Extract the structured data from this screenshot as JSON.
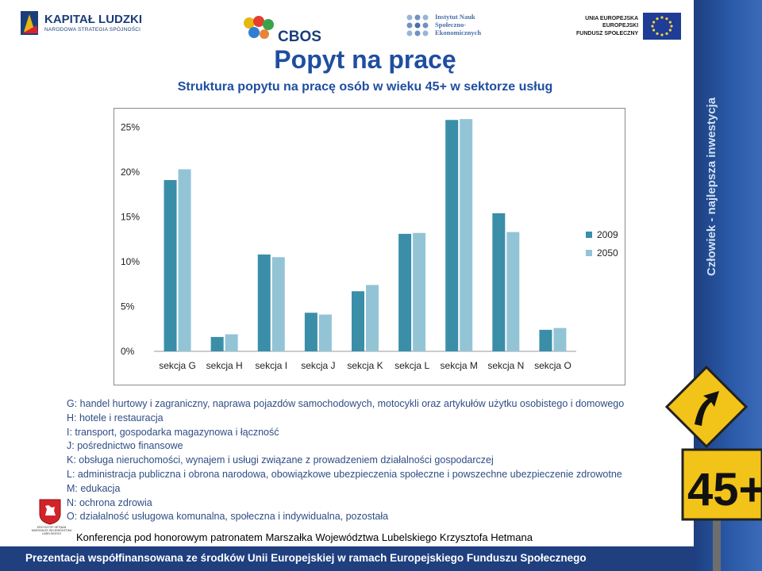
{
  "logos": {
    "kapital_name": "KAPITAŁ LUDZKI",
    "kapital_sub": "NARODOWA STRATEGIA SPÓJNOŚCI",
    "cbos": "CBOS",
    "institute_lines": [
      "Instytut Nauk",
      "Społeczno-",
      "Ekonomicznych"
    ],
    "ue_lines": [
      "UNIA EUROPEJSKA",
      "EUROPEJSKI",
      "FUNDUSZ SPOŁECZNY"
    ]
  },
  "header": {
    "title": "Popyt na pracę",
    "subtitle": "Struktura popytu na pracę osób w wieku 45+ w sektorze usług"
  },
  "chart_data": {
    "type": "bar",
    "categories": [
      "sekcja G",
      "sekcja H",
      "sekcja I",
      "sekcja J",
      "sekcja K",
      "sekcja L",
      "sekcja M",
      "sekcja N",
      "sekcja O"
    ],
    "series": [
      {
        "name": "2009",
        "values": [
          19.1,
          1.6,
          10.8,
          4.3,
          6.7,
          13.1,
          25.8,
          15.4,
          2.4
        ],
        "color": "#3a8ea8"
      },
      {
        "name": "2050",
        "values": [
          20.3,
          1.9,
          10.5,
          4.1,
          7.4,
          13.2,
          25.9,
          13.3,
          2.6
        ],
        "color": "#93c4d6"
      }
    ],
    "yticks": [
      "0%",
      "5%",
      "10%",
      "15%",
      "20%",
      "25%"
    ],
    "ylim": [
      0,
      26
    ],
    "grid": false,
    "legend_position": "right",
    "title": "",
    "xlabel": "",
    "ylabel": ""
  },
  "descriptions": [
    "G: handel hurtowy i zagraniczny, naprawa pojazdów samochodowych, motocykli  oraz artykułów użytku osobistego i domowego",
    "H: hotele i restauracja",
    "I: transport, gospodarka magazynowa i łączność",
    "J: pośrednictwo finansowe",
    "K: obsługa nieruchomości, wynajem i usługi związane z prowadzeniem działalności gospodarczej",
    "L: administracja publiczna i obrona narodowa, obowiązkowe ubezpieczenia społeczne i powszechne ubezpieczenie zdrowotne",
    "M: edukacja",
    "N: ochrona zdrowia",
    "O: działalność usługowa komunalna, społeczna i indywidualna, pozostała"
  ],
  "footer": {
    "crest_caption": "KRZYSZTOF HETMAN MARSZAŁEK WOJEWÓDZTWA LUBELSKIEGO",
    "conference": "Konferencja pod honorowym patronatem Marszałka Województwa Lubelskiego Krzysztofa Hetmana",
    "funding": "Prezentacja współfinansowana ze środków Unii Europejskiej w ramach Europejskiego Funduszu Społecznego"
  },
  "sidebar": {
    "slogan": "Człowiek - najlepsza inwestycja",
    "sign_text": "45+"
  }
}
